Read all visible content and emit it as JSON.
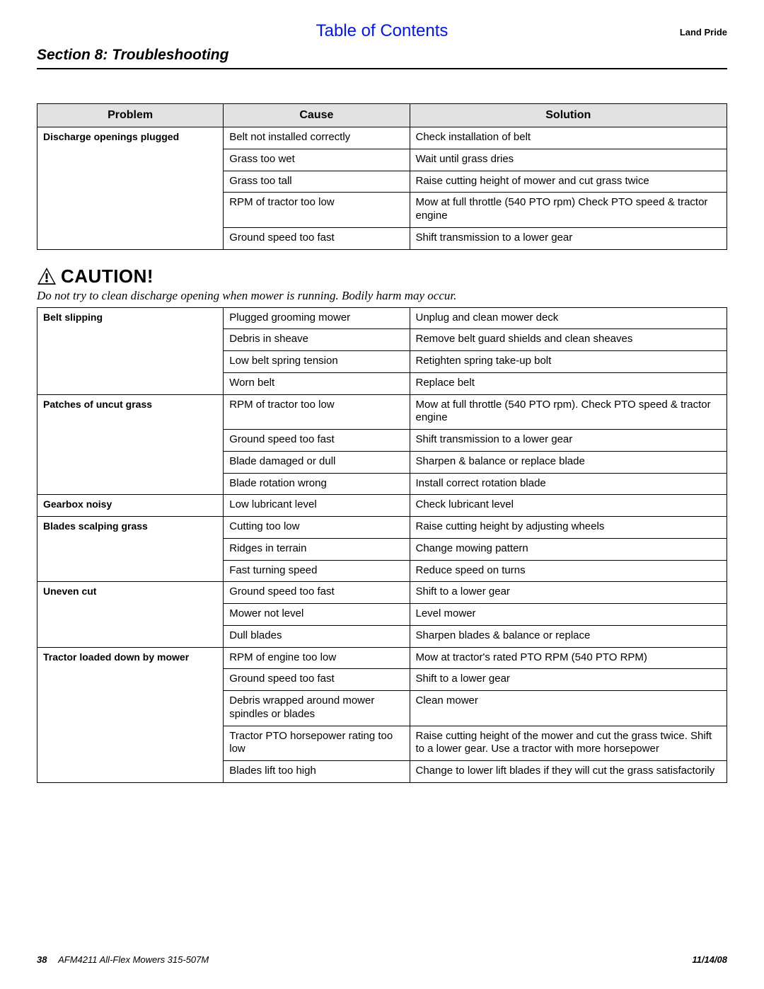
{
  "header": {
    "toc": "Table of Contents",
    "brand": "Land Pride",
    "section": "Section 8:  Troubleshooting"
  },
  "columns": {
    "problem": "Problem",
    "cause": "Cause",
    "solution": "Solution"
  },
  "caution": {
    "word": "CAUTION!",
    "text": "Do not try to clean discharge opening when mower is running. Bodily harm may occur."
  },
  "table1": {
    "problem": "Discharge openings plugged",
    "rows": [
      {
        "cause": "Belt not installed correctly",
        "solution": "Check installation of belt"
      },
      {
        "cause": "Grass too wet",
        "solution": "Wait until grass dries"
      },
      {
        "cause": "Grass too tall",
        "solution": "Raise cutting height of mower and cut grass twice"
      },
      {
        "cause": "RPM of tractor too low",
        "solution": "Mow at full throttle (540 PTO rpm) Check PTO speed & tractor engine"
      },
      {
        "cause": "Ground speed too fast",
        "solution": "Shift transmission to a lower gear"
      }
    ]
  },
  "table2": [
    {
      "problem": "Belt slipping",
      "rows": [
        {
          "cause": "Plugged grooming mower",
          "solution": "Unplug and clean mower deck"
        },
        {
          "cause": "Debris in sheave",
          "solution": "Remove belt guard shields and clean sheaves"
        },
        {
          "cause": "Low belt spring tension",
          "solution": "Retighten spring take-up bolt"
        },
        {
          "cause": "Worn belt",
          "solution": "Replace belt"
        }
      ]
    },
    {
      "problem": "Patches of uncut grass",
      "rows": [
        {
          "cause": "RPM of tractor too low",
          "solution": "Mow at full throttle (540 PTO rpm). Check PTO speed & tractor engine"
        },
        {
          "cause": "Ground speed too fast",
          "solution": "Shift transmission to a lower gear"
        },
        {
          "cause": "Blade damaged or dull",
          "solution": "Sharpen & balance or replace blade"
        },
        {
          "cause": "Blade rotation wrong",
          "solution": "Install correct rotation blade"
        }
      ]
    },
    {
      "problem": "Gearbox noisy",
      "rows": [
        {
          "cause": "Low lubricant level",
          "solution": "Check lubricant level"
        }
      ]
    },
    {
      "problem": "Blades scalping grass",
      "rows": [
        {
          "cause": "Cutting too low",
          "solution": "Raise cutting height by adjusting wheels"
        },
        {
          "cause": "Ridges in terrain",
          "solution": "Change mowing pattern"
        },
        {
          "cause": "Fast turning speed",
          "solution": "Reduce speed on turns"
        }
      ]
    },
    {
      "problem": "Uneven cut",
      "rows": [
        {
          "cause": "Ground speed too fast",
          "solution": "Shift to a lower gear"
        },
        {
          "cause": "Mower not level",
          "solution": "Level mower"
        },
        {
          "cause": "Dull blades",
          "solution": "Sharpen blades & balance or replace"
        }
      ]
    },
    {
      "problem": "Tractor loaded down by mower",
      "rows": [
        {
          "cause": "RPM of engine too low",
          "solution": "Mow at tractor's rated PTO RPM (540 PTO RPM)"
        },
        {
          "cause": "Ground speed too fast",
          "solution": "Shift to a lower gear"
        },
        {
          "cause": "Debris wrapped around mower spindles or blades",
          "solution": "Clean mower"
        },
        {
          "cause": "Tractor PTO horsepower rating too low",
          "solution": "Raise cutting height of the mower and cut the grass twice. Shift to a lower gear. Use a tractor with more horsepower"
        },
        {
          "cause": "Blades lift too high",
          "solution": "Change to lower lift blades if they will cut the grass satisfactorily"
        }
      ]
    }
  ],
  "footer": {
    "page": "38",
    "doc": "AFM4211 All-Flex Mowers   315-507M",
    "date": "11/14/08"
  },
  "colors": {
    "link": "#0015ff",
    "header_bg": "#e2e2e2",
    "text": "#000000",
    "border": "#000000"
  }
}
